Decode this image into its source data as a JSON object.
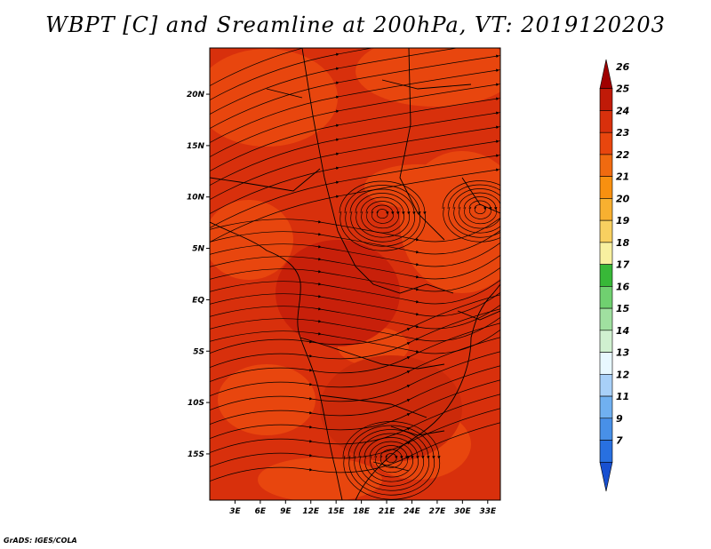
{
  "title": "WBPT [C] and Sreamline at 200hPa, VT: 2019120203",
  "credit": "GrADS: IGES/COLA",
  "map": {
    "lat_labels": [
      "20N",
      "15N",
      "10N",
      "5N",
      "EQ",
      "5S",
      "10S",
      "15S"
    ],
    "lat_values": [
      20,
      15,
      10,
      5,
      0,
      -5,
      -10,
      -15
    ],
    "lon_labels": [
      "3E",
      "6E",
      "9E",
      "12E",
      "15E",
      "18E",
      "21E",
      "24E",
      "27E",
      "30E",
      "33E"
    ],
    "lon_values": [
      3,
      6,
      9,
      12,
      15,
      18,
      21,
      24,
      27,
      30,
      33
    ],
    "lon_range": [
      0,
      34.5
    ],
    "lat_range": [
      -19.5,
      24.5
    ],
    "field_colors": {
      "base": "#d8300c",
      "warm": "#e8460e",
      "hot": "#c8200a",
      "mid": "#f05a14"
    }
  },
  "colorbar": {
    "levels": [
      "26",
      "25",
      "24",
      "23",
      "22",
      "21",
      "20",
      "19",
      "18",
      "17",
      "16",
      "15",
      "14",
      "13",
      "12",
      "11",
      "9",
      "7"
    ],
    "colors": [
      "#a00000",
      "#c01a08",
      "#d8300c",
      "#e8460e",
      "#f06a10",
      "#f89010",
      "#f8b030",
      "#f8d060",
      "#f8f0a0",
      "#38b838",
      "#70d070",
      "#a0e0a0",
      "#d0f0d0",
      "#e8f8ff",
      "#a8d0f8",
      "#70b0f0",
      "#4890e8",
      "#2870e0",
      "#1850d0"
    ]
  }
}
